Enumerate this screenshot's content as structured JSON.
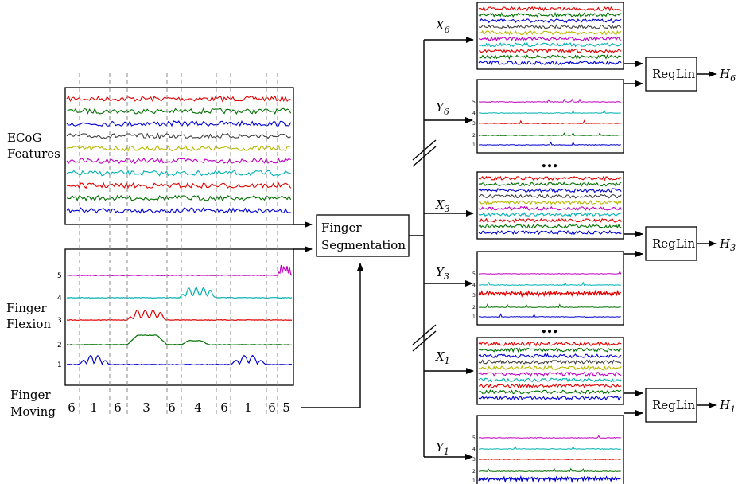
{
  "labels": {
    "ecog_line1": "ECoG",
    "ecog_line2": "Features",
    "flexion_line1": "Finger",
    "flexion_line2": "Flexion",
    "moving_line1": "Finger",
    "moving_line2": "Moving",
    "segmentation_line1": "Finger",
    "segmentation_line2": "Segmentation",
    "reglin": "RegLin",
    "ellipsis": "…"
  },
  "finger_channels": [
    "1",
    "2",
    "3",
    "4",
    "5"
  ],
  "finger_moving_sequence": [
    "6",
    "1",
    "6",
    "3",
    "6",
    "4",
    "6",
    "1",
    "6",
    "5"
  ],
  "outputs": [
    {
      "x_main": "X",
      "x_sub": "6",
      "y_main": "Y",
      "y_sub": "6",
      "h_main": "H",
      "h_sub": "6"
    },
    {
      "x_main": "X",
      "x_sub": "3",
      "y_main": "Y",
      "y_sub": "3",
      "h_main": "H",
      "h_sub": "3"
    },
    {
      "x_main": "X",
      "x_sub": "1",
      "y_main": "Y",
      "y_sub": "1",
      "h_main": "H",
      "h_sub": "1"
    }
  ],
  "colors": {
    "ecog_traces": [
      "#e00000",
      "#007000",
      "#0000d0",
      "#404040",
      "#b8b800",
      "#c000c0",
      "#00b0b0",
      "#e00000",
      "#007000",
      "#0000d0"
    ],
    "fingers": [
      "#0000d0",
      "#007000",
      "#e00000",
      "#00b0b0",
      "#c000c0"
    ]
  }
}
